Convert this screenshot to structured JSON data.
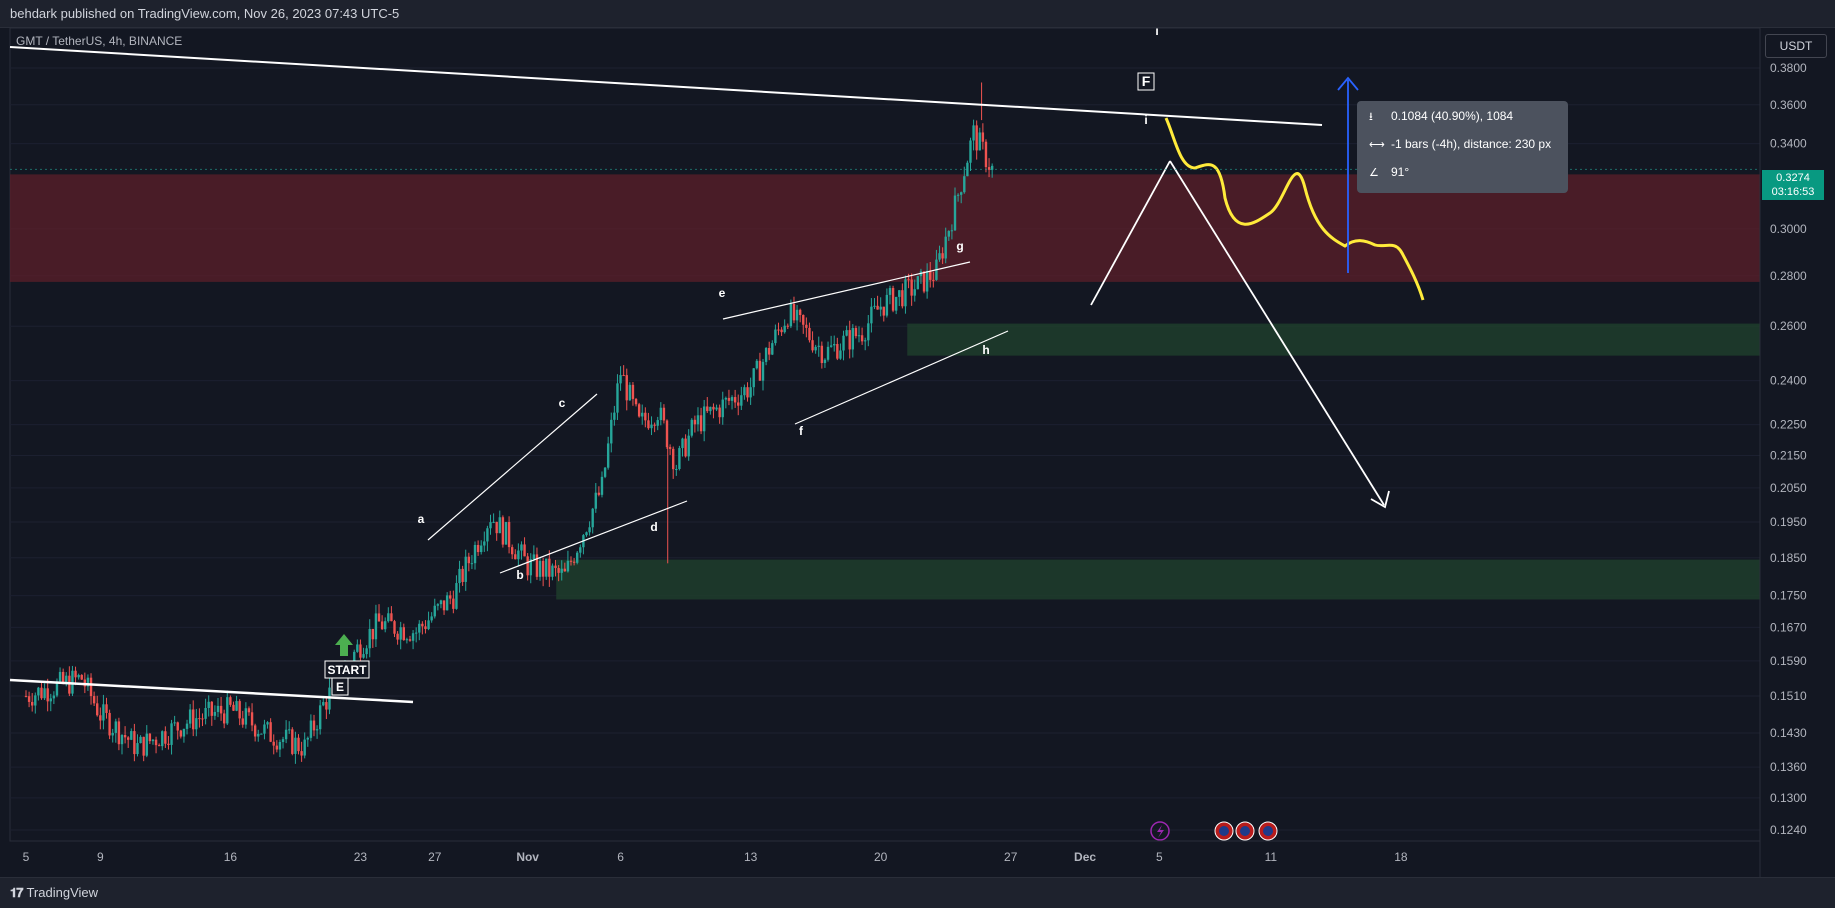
{
  "header": {
    "published": "behdark published on TradingView.com, Nov 26, 2023 07:43 UTC-5"
  },
  "legend": {
    "symbol": "GMT / TetherUS, 4h, BINANCE"
  },
  "currency_button": "USDT",
  "last_price": {
    "value": "0.3274",
    "countdown": "03:16:53",
    "color": "#089981"
  },
  "measure_tooltip": {
    "line1": "0.1084 (40.90%), 1084",
    "line2": "-1 bars (-4h), distance: 230 px",
    "line3": "91°",
    "icons": [
      "price-range-icon",
      "bars-range-icon",
      "angle-icon"
    ]
  },
  "footer": {
    "brand": "TradingView"
  },
  "colors": {
    "background": "#131722",
    "up": "#26a69a",
    "down": "#ef5350",
    "supply_zone": "#5c1f2a",
    "demand_zone": "#1f3d2c",
    "projection": "#ffeb3b",
    "measure_arrow": "#2962ff"
  },
  "chart_data": {
    "type": "candlestick",
    "symbol": "GMT / TetherUS",
    "interval": "4h",
    "exchange": "BINANCE",
    "y_scale": "log",
    "y_ticks": [
      "0.3800",
      "0.3600",
      "0.3400",
      "0.3000",
      "0.2800",
      "0.2600",
      "0.2400",
      "0.2250",
      "0.2150",
      "0.2050",
      "0.1950",
      "0.1850",
      "0.1750",
      "0.1670",
      "0.1590",
      "0.1510",
      "0.1430",
      "0.1360",
      "0.1300",
      "0.1240"
    ],
    "x_ticks": [
      "5",
      "9",
      "16",
      "23",
      "27",
      "Nov",
      "6",
      "13",
      "20",
      "27",
      "Dec",
      "5",
      "11",
      "18"
    ],
    "close_path": [
      [
        "Oct 5",
        0.151
      ],
      [
        "Oct 8",
        0.155
      ],
      [
        "Oct 9",
        0.147
      ],
      [
        "Oct 11",
        0.14
      ],
      [
        "Oct 14",
        0.146
      ],
      [
        "Oct 16",
        0.148
      ],
      [
        "Oct 18",
        0.143
      ],
      [
        "Oct 20",
        0.14
      ],
      [
        "Oct 21",
        0.149
      ],
      [
        "Oct 23",
        0.163
      ],
      [
        "Oct 24",
        0.168
      ],
      [
        "Oct 26",
        0.166
      ],
      [
        "Oct 28",
        0.175
      ],
      [
        "Oct 30",
        0.197
      ],
      [
        "Nov 1",
        0.183
      ],
      [
        "Nov 3",
        0.18
      ],
      [
        "Nov 5",
        0.205
      ],
      [
        "Nov 6",
        0.243
      ],
      [
        "Nov 7",
        0.225
      ],
      [
        "Nov 8",
        0.23
      ],
      [
        "Nov 9",
        0.212
      ],
      [
        "Nov 10",
        0.225
      ],
      [
        "Nov 13",
        0.238
      ],
      [
        "Nov 15",
        0.265
      ],
      [
        "Nov 17",
        0.25
      ],
      [
        "Nov 19",
        0.258
      ],
      [
        "Nov 20",
        0.268
      ],
      [
        "Nov 21",
        0.272
      ],
      [
        "Nov 22",
        0.276
      ],
      [
        "Nov 23",
        0.282
      ],
      [
        "Nov 24",
        0.31
      ],
      [
        "Nov 25",
        0.345
      ],
      [
        "Nov 26",
        0.3274
      ]
    ],
    "last_price": 0.3274,
    "zones": [
      {
        "type": "supply",
        "from": 0.2775,
        "to": 0.325
      },
      {
        "type": "demand",
        "from": 0.249,
        "to": 0.261
      },
      {
        "type": "demand",
        "from": 0.174,
        "to": 0.1845
      }
    ],
    "wave_labels": [
      "a",
      "b",
      "c",
      "d",
      "e",
      "f",
      "g",
      "h",
      "i",
      "F",
      "START",
      "E"
    ],
    "measure": {
      "price_change": "0.1084",
      "percent": "40.90%",
      "ticks": "1084",
      "bars": "-1",
      "angle": "91°"
    }
  }
}
